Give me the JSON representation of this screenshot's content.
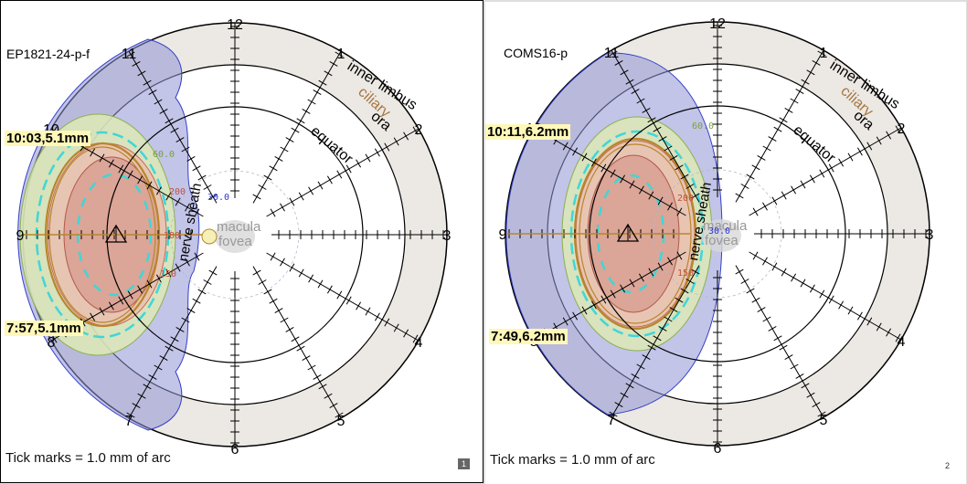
{
  "panels": [
    {
      "id": "EP1821-24-p-f",
      "hours": [
        "12",
        "1",
        "2",
        "3",
        "4",
        "5",
        "6",
        "7",
        "8",
        "9",
        "10",
        "11"
      ],
      "ring_labels": {
        "inner_limbus": "inner limbus",
        "ciliary": "ciliary",
        "ora": "ora",
        "equator": "equator"
      },
      "macula_label": "macula",
      "fovea_label": "fovea",
      "nerve_sheath_label": "nerve sheath",
      "contours": [
        "30.0",
        "60.0",
        "150",
        "180",
        "200"
      ],
      "margin_upper": "10:03,5.1mm",
      "margin_lower": "7:57,5.1mm",
      "footer": "Tick marks = 1.0 mm of arc",
      "page_number": "1"
    },
    {
      "id": "COMS16-p",
      "hours": [
        "12",
        "1",
        "2",
        "3",
        "4",
        "5",
        "6",
        "7",
        "8",
        "9",
        "10",
        "11"
      ],
      "ring_labels": {
        "inner_limbus": "inner limbus",
        "ciliary": "ciliary",
        "ora": "ora",
        "equator": "equator"
      },
      "macula_label": "macula",
      "fovea_label": "fovea",
      "nerve_sheath_label": "nerve sheath",
      "contours": [
        "30.0",
        "60.0",
        "150",
        "200"
      ],
      "margin_upper": "10:11,6.2mm",
      "margin_lower": "7:49,6.2mm",
      "footer": "Tick marks = 1.0 mm of arc",
      "page_number": "2"
    }
  ],
  "colors": {
    "ciliary_band": "#ece8e3",
    "blue_zone": "#8f93d6",
    "green_zone": "#dde9b5",
    "cyan_dash": "#40d6d6",
    "red_zone": "#d79a8e",
    "gold_outline": "#b8862c",
    "ciliary_text": "#a57640"
  }
}
